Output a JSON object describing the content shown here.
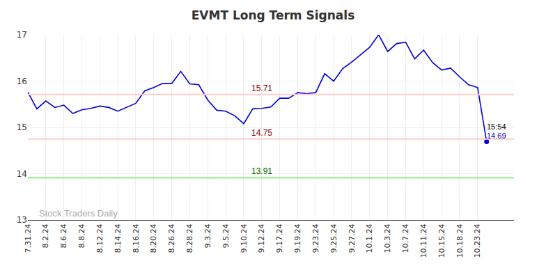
{
  "chart_data": {
    "type": "line",
    "title": "EVMT Long Term Signals",
    "categories": [
      "7.31.24",
      null,
      "8.2.24",
      null,
      "8.6.24",
      null,
      "8.8.24",
      null,
      "8.12.24",
      null,
      "8.14.24",
      null,
      "8.16.24",
      null,
      "8.20.24",
      null,
      "8.26.24",
      null,
      "8.28.24",
      null,
      "9.3.24",
      null,
      "9.5.24",
      null,
      "9.10.24",
      null,
      "9.12.24",
      null,
      "9.17.24",
      null,
      "9.19.24",
      null,
      "9.23.24",
      null,
      "9.25.24",
      null,
      "9.27.24",
      null,
      "10.1.24",
      null,
      "10.3.24",
      null,
      "10.7.24",
      null,
      "10.11.24",
      null,
      "10.15.24",
      null,
      "10.18.24",
      null,
      "10.23.24",
      null
    ],
    "values": [
      15.76,
      15.4,
      15.57,
      15.43,
      15.48,
      15.3,
      15.38,
      15.41,
      15.46,
      15.43,
      15.35,
      15.43,
      15.52,
      15.79,
      15.86,
      15.95,
      15.95,
      16.21,
      15.94,
      15.92,
      15.59,
      15.37,
      15.35,
      15.25,
      15.08,
      15.4,
      15.41,
      15.44,
      15.63,
      15.63,
      15.75,
      15.73,
      15.75,
      16.16,
      16.0,
      16.27,
      16.41,
      16.57,
      16.73,
      17.0,
      16.64,
      16.81,
      16.84,
      16.48,
      16.67,
      16.4,
      16.24,
      16.28,
      16.09,
      15.92,
      15.86,
      14.69
    ],
    "color": "#0000dd",
    "ylim": [
      13,
      17
    ],
    "yticks": [
      13,
      14,
      15,
      16,
      17
    ],
    "grid": true,
    "levels": [
      {
        "value": 15.71,
        "label": "15.71",
        "color": "#ffcccc",
        "label_color": "#8b0000"
      },
      {
        "value": 14.75,
        "label": "14.75",
        "color": "#ffcccc",
        "label_color": "#8b0000"
      },
      {
        "value": 13.91,
        "label": "13.91",
        "color": "#90ee90",
        "label_color": "#006400"
      }
    ],
    "end_annotation": {
      "time": "15:54",
      "value_label": "14.69"
    },
    "watermark": "Stock Traders Daily"
  }
}
